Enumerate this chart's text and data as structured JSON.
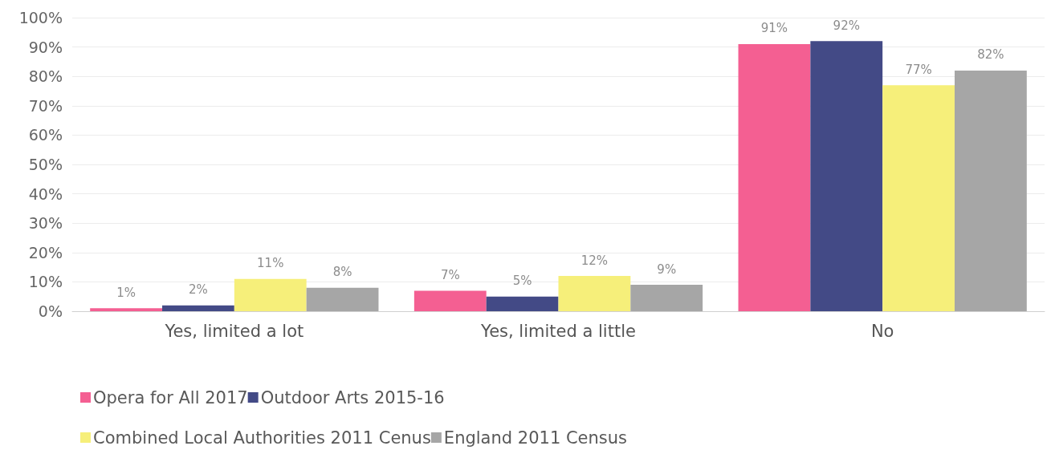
{
  "chart_data": {
    "type": "bar",
    "categories": [
      "Yes, limited a lot",
      "Yes, limited a little",
      "No"
    ],
    "series": [
      {
        "name": "Opera for All 2017",
        "color": "#f45f92",
        "values": [
          1,
          7,
          91
        ],
        "value_labels": [
          "1%",
          "7%",
          "91%"
        ]
      },
      {
        "name": "Outdoor Arts 2015-16",
        "color": "#434a86",
        "values": [
          2,
          5,
          92
        ],
        "value_labels": [
          "2%",
          "5%",
          "92%"
        ]
      },
      {
        "name": "Combined Local Authorities 2011 Cenus",
        "color": "#f6ef7a",
        "values": [
          11,
          12,
          77
        ],
        "value_labels": [
          "11%",
          "12%",
          "77%"
        ]
      },
      {
        "name": "England 2011 Census",
        "color": "#a6a6a6",
        "values": [
          8,
          9,
          82
        ],
        "value_labels": [
          "8%",
          "9%",
          "82%"
        ]
      }
    ],
    "ylim": [
      0,
      100
    ],
    "yticks": [
      {
        "value": 0,
        "label": "0%"
      },
      {
        "value": 10,
        "label": "10%"
      },
      {
        "value": 20,
        "label": "20%"
      },
      {
        "value": 30,
        "label": "30%"
      },
      {
        "value": 40,
        "label": "40%"
      },
      {
        "value": 50,
        "label": "50%"
      },
      {
        "value": 60,
        "label": "60%"
      },
      {
        "value": 70,
        "label": "70%"
      },
      {
        "value": 80,
        "label": "80%"
      },
      {
        "value": 90,
        "label": "90%"
      },
      {
        "value": 100,
        "label": "100%"
      }
    ],
    "grid": "y",
    "legend": "bottom"
  }
}
